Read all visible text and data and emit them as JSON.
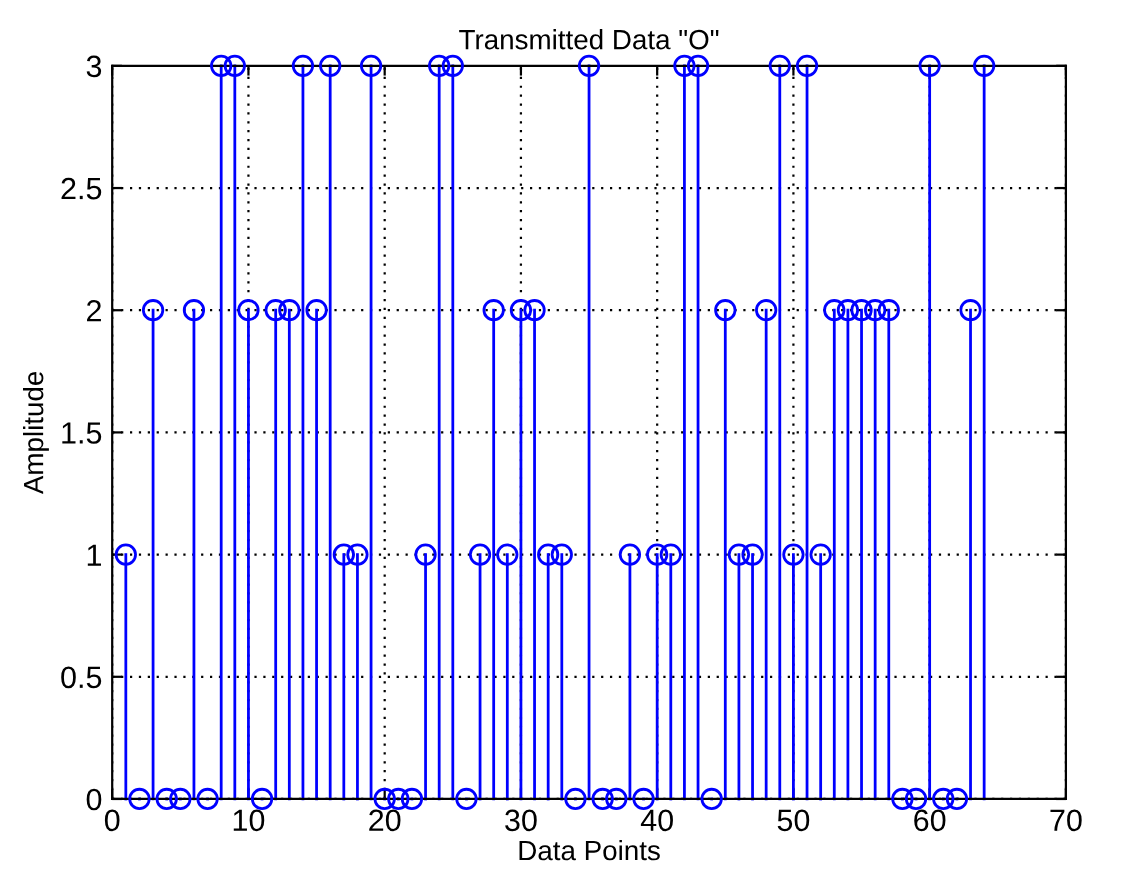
{
  "chart_data": {
    "type": "lollipop",
    "title": "Transmitted Data \"O\"",
    "xlabel": "Data Points",
    "ylabel": "Amplitude",
    "x": [
      1,
      2,
      3,
      4,
      5,
      6,
      7,
      8,
      9,
      10,
      11,
      12,
      13,
      14,
      15,
      16,
      17,
      18,
      19,
      20,
      21,
      22,
      23,
      24,
      25,
      26,
      27,
      28,
      29,
      30,
      31,
      32,
      33,
      34,
      35,
      36,
      37,
      38,
      39,
      40,
      41,
      42,
      43,
      44,
      45,
      46,
      47,
      48,
      49,
      50,
      51,
      52,
      53,
      54,
      55,
      56,
      57,
      58,
      59,
      60,
      61,
      62,
      63,
      64
    ],
    "values": [
      1,
      0,
      2,
      0,
      0,
      2,
      0,
      3,
      3,
      2,
      0,
      2,
      2,
      3,
      2,
      3,
      1,
      1,
      3,
      0,
      0,
      0,
      1,
      3,
      3,
      0,
      1,
      2,
      1,
      2,
      2,
      1,
      1,
      0,
      3,
      0,
      0,
      1,
      0,
      1,
      1,
      3,
      3,
      0,
      2,
      1,
      1,
      2,
      3,
      1,
      3,
      1,
      2,
      2,
      2,
      2,
      2,
      0,
      0,
      3,
      0,
      0,
      2,
      3
    ],
    "color": "#0000ff",
    "marker": "circle",
    "xlim": [
      0,
      70
    ],
    "xticks": [
      0,
      10,
      20,
      30,
      40,
      50,
      60,
      70
    ],
    "ylim": [
      0,
      3
    ],
    "yticks": [
      0,
      0.5,
      1,
      1.5,
      2,
      2.5,
      3
    ],
    "grid": true
  }
}
